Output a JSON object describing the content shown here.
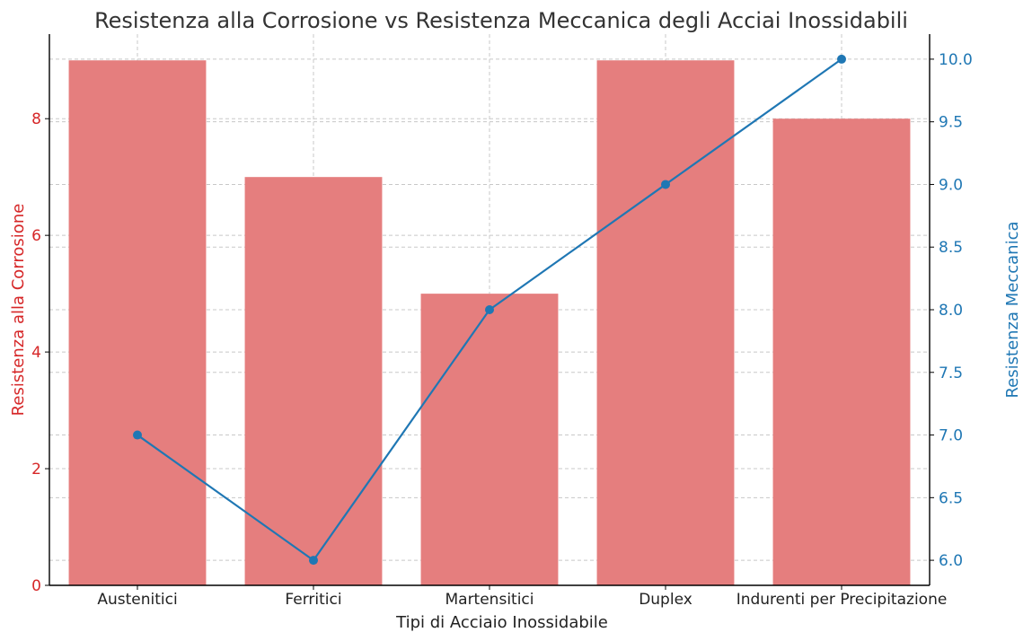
{
  "chart_data": {
    "type": "bar",
    "title": "Resistenza alla Corrosione vs Resistenza Meccanica degli Acciai Inossidabili",
    "xlabel": "Tipi di Acciaio Inossidabile",
    "categories": [
      "Austenitici",
      "Ferritici",
      "Martensitici",
      "Duplex",
      "Indurenti per Precipitazione"
    ],
    "series": [
      {
        "name": "Resistenza alla Corrosione",
        "type": "bar",
        "axis": "left",
        "values": [
          9,
          7,
          5,
          9,
          8
        ],
        "color": "#e57e7e"
      },
      {
        "name": "Resistenza Meccanica",
        "type": "line",
        "axis": "right",
        "values": [
          7,
          6,
          8,
          9,
          10
        ],
        "color": "#1f77b4"
      }
    ],
    "y_left": {
      "label": "Resistenza alla Corrosione",
      "range": [
        0,
        9.45
      ],
      "ticks": [
        "0",
        "2",
        "4",
        "6",
        "8"
      ],
      "tick_values": [
        0,
        2,
        4,
        6,
        8
      ],
      "color": "#d62728"
    },
    "y_right": {
      "label": "Resistenza Meccanica",
      "range": [
        5.8,
        10.2
      ],
      "ticks": [
        "6.0",
        "6.5",
        "7.0",
        "7.5",
        "8.0",
        "8.5",
        "9.0",
        "9.5",
        "10.0"
      ],
      "tick_values": [
        6.0,
        6.5,
        7.0,
        7.5,
        8.0,
        8.5,
        9.0,
        9.5,
        10.0
      ],
      "color": "#1f77b4"
    },
    "grid": true,
    "legend": "none"
  }
}
